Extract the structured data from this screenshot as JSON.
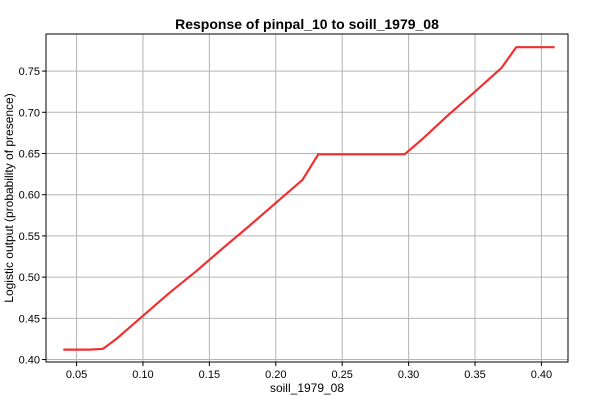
{
  "chart_data": {
    "type": "line",
    "title": "Response of pinpal_10 to soill_1979_08",
    "xlabel": "soill_1979_08",
    "ylabel": "Logistic output (probability of presence)",
    "xlim": [
      0.027,
      0.42
    ],
    "ylim": [
      0.397,
      0.795
    ],
    "x_ticks": [
      "0.05",
      "0.10",
      "0.15",
      "0.20",
      "0.25",
      "0.30",
      "0.35",
      "0.40"
    ],
    "y_ticks": [
      "0.40",
      "0.45",
      "0.50",
      "0.55",
      "0.60",
      "0.65",
      "0.70",
      "0.75"
    ],
    "grid": true,
    "series": [
      {
        "color": "#f03030",
        "x": [
          0.04,
          0.05,
          0.06,
          0.07,
          0.08,
          0.1,
          0.12,
          0.14,
          0.16,
          0.18,
          0.2,
          0.22,
          0.232,
          0.25,
          0.27,
          0.297,
          0.31,
          0.33,
          0.35,
          0.37,
          0.381,
          0.395,
          0.41
        ],
        "y": [
          0.412,
          0.412,
          0.412,
          0.413,
          0.425,
          0.453,
          0.481,
          0.507,
          0.535,
          0.562,
          0.59,
          0.618,
          0.649,
          0.649,
          0.649,
          0.649,
          0.667,
          0.697,
          0.725,
          0.754,
          0.779,
          0.779,
          0.779
        ]
      }
    ]
  }
}
